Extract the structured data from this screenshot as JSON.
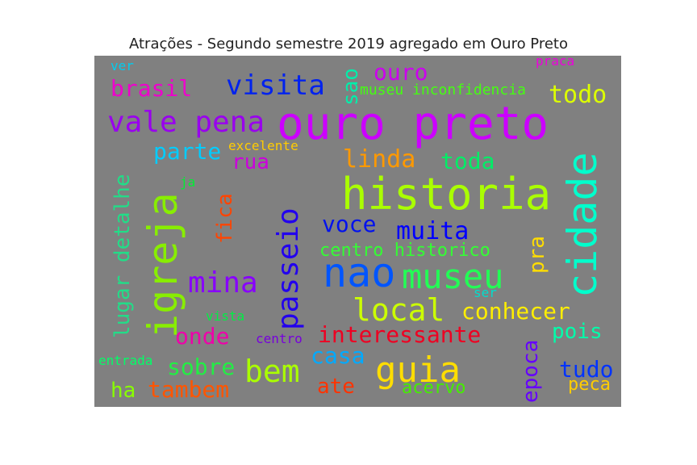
{
  "chart_data": {
    "type": "wordcloud",
    "title": "Atrações - Segundo semestre 2019 agregado em Ouro Preto",
    "background": "#808080",
    "words": [
      {
        "text": "ouro preto",
        "color": "#cc00ff",
        "vertical": false
      },
      {
        "text": "historia",
        "color": "#aaff00",
        "vertical": false
      },
      {
        "text": "igreja",
        "color": "#88ee00",
        "vertical": true
      },
      {
        "text": "cidade",
        "color": "#00ffcc",
        "vertical": true
      },
      {
        "text": "nao",
        "color": "#0055ff",
        "vertical": false
      },
      {
        "text": "museu",
        "color": "#22ff55",
        "vertical": false
      },
      {
        "text": "passeio",
        "color": "#2200ee",
        "vertical": true
      },
      {
        "text": "guia",
        "color": "#ffdd00",
        "vertical": false
      },
      {
        "text": "visita",
        "color": "#0022ee",
        "vertical": false
      },
      {
        "text": "vale pena",
        "color": "#9900ee",
        "vertical": false
      },
      {
        "text": "mina",
        "color": "#8800ff",
        "vertical": false
      },
      {
        "text": "local",
        "color": "#ccff00",
        "vertical": false
      },
      {
        "text": "bem",
        "color": "#aaff00",
        "vertical": false
      },
      {
        "text": "conhecer",
        "color": "#ffee00",
        "vertical": false
      },
      {
        "text": "interessante",
        "color": "#ee0022",
        "vertical": false
      },
      {
        "text": "lugar detalhe",
        "color": "#22dd88",
        "vertical": true
      },
      {
        "text": "ouro",
        "color": "#cc00ee",
        "vertical": false
      },
      {
        "text": "muita",
        "color": "#0000ff",
        "vertical": false
      },
      {
        "text": "voce",
        "color": "#0011ee",
        "vertical": false
      },
      {
        "text": "linda",
        "color": "#ff9900",
        "vertical": false
      },
      {
        "text": "todo",
        "color": "#ddff00",
        "vertical": false
      },
      {
        "text": "toda",
        "color": "#00ee66",
        "vertical": false
      },
      {
        "text": "brasil",
        "color": "#ee00cc",
        "vertical": false
      },
      {
        "text": "parte",
        "color": "#00ccff",
        "vertical": false
      },
      {
        "text": "tudo",
        "color": "#0033ff",
        "vertical": false
      },
      {
        "text": "casa",
        "color": "#00aaff",
        "vertical": false
      },
      {
        "text": "sobre",
        "color": "#22ee44",
        "vertical": false
      },
      {
        "text": "tambem",
        "color": "#ff5500",
        "vertical": false
      },
      {
        "text": "onde",
        "color": "#ee00aa",
        "vertical": false
      },
      {
        "text": "pois",
        "color": "#00ffaa",
        "vertical": false
      },
      {
        "text": "epoca",
        "color": "#6600ff",
        "vertical": true
      },
      {
        "text": "fica",
        "color": "#ff4400",
        "vertical": true
      },
      {
        "text": "sao",
        "color": "#00eeaa",
        "vertical": true
      },
      {
        "text": "pra",
        "color": "#ffdd00",
        "vertical": true
      },
      {
        "text": "ate",
        "color": "#ff3300",
        "vertical": false
      },
      {
        "text": "rua",
        "color": "#cc00dd",
        "vertical": false
      },
      {
        "text": "acervo",
        "color": "#44ee00",
        "vertical": false
      },
      {
        "text": "ha",
        "color": "#88ff00",
        "vertical": false
      },
      {
        "text": "peca",
        "color": "#ffcc00",
        "vertical": false
      },
      {
        "text": "centro historico",
        "color": "#33ff33",
        "vertical": false
      },
      {
        "text": "museu inconfidencia",
        "color": "#44ff11",
        "vertical": false
      },
      {
        "text": "excelente",
        "color": "#ffcc00",
        "vertical": false
      },
      {
        "text": "ver",
        "color": "#00ccee",
        "vertical": false
      },
      {
        "text": "praca",
        "color": "#ee00dd",
        "vertical": false
      },
      {
        "text": "ja",
        "color": "#00ee33",
        "vertical": false
      },
      {
        "text": "vista",
        "color": "#00ee44",
        "vertical": false
      },
      {
        "text": "centro",
        "color": "#7700dd",
        "vertical": false
      },
      {
        "text": "entrada",
        "color": "#00ff66",
        "vertical": false
      },
      {
        "text": "ser",
        "color": "#00ddcc",
        "vertical": false
      }
    ]
  }
}
